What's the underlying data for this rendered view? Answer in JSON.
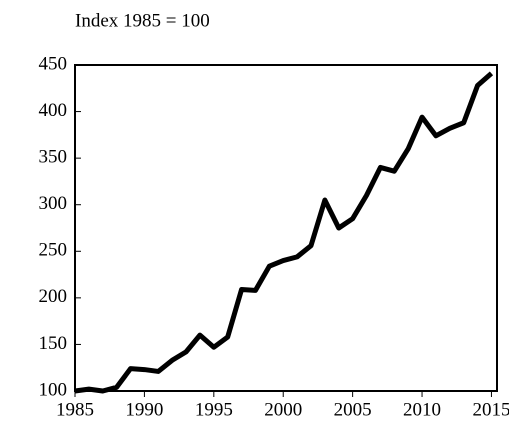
{
  "chart_data": {
    "type": "line",
    "title": "Index 1985 = 100",
    "x": [
      1985,
      1986,
      1987,
      1988,
      1989,
      1990,
      1991,
      1992,
      1993,
      1994,
      1995,
      1996,
      1997,
      1998,
      1999,
      2000,
      2001,
      2002,
      2003,
      2004,
      2005,
      2006,
      2007,
      2008,
      2009,
      2010,
      2011,
      2012,
      2013,
      2014,
      2015
    ],
    "series": [
      {
        "name": "Index",
        "color": "#000000",
        "values": [
          100,
          102,
          100,
          104,
          124,
          123,
          121,
          133,
          142,
          160,
          147,
          158,
          209,
          208,
          234,
          240,
          244,
          256,
          305,
          275,
          285,
          310,
          340,
          336,
          360,
          394,
          374,
          382,
          388,
          428,
          441
        ]
      }
    ],
    "xlim": [
      1985,
      2015.4
    ],
    "xticks": [
      1985,
      1990,
      1995,
      2000,
      2005,
      2010,
      2015
    ],
    "ylim": [
      100,
      450
    ],
    "yticks": [
      100,
      150,
      200,
      250,
      300,
      350,
      400,
      450
    ]
  }
}
